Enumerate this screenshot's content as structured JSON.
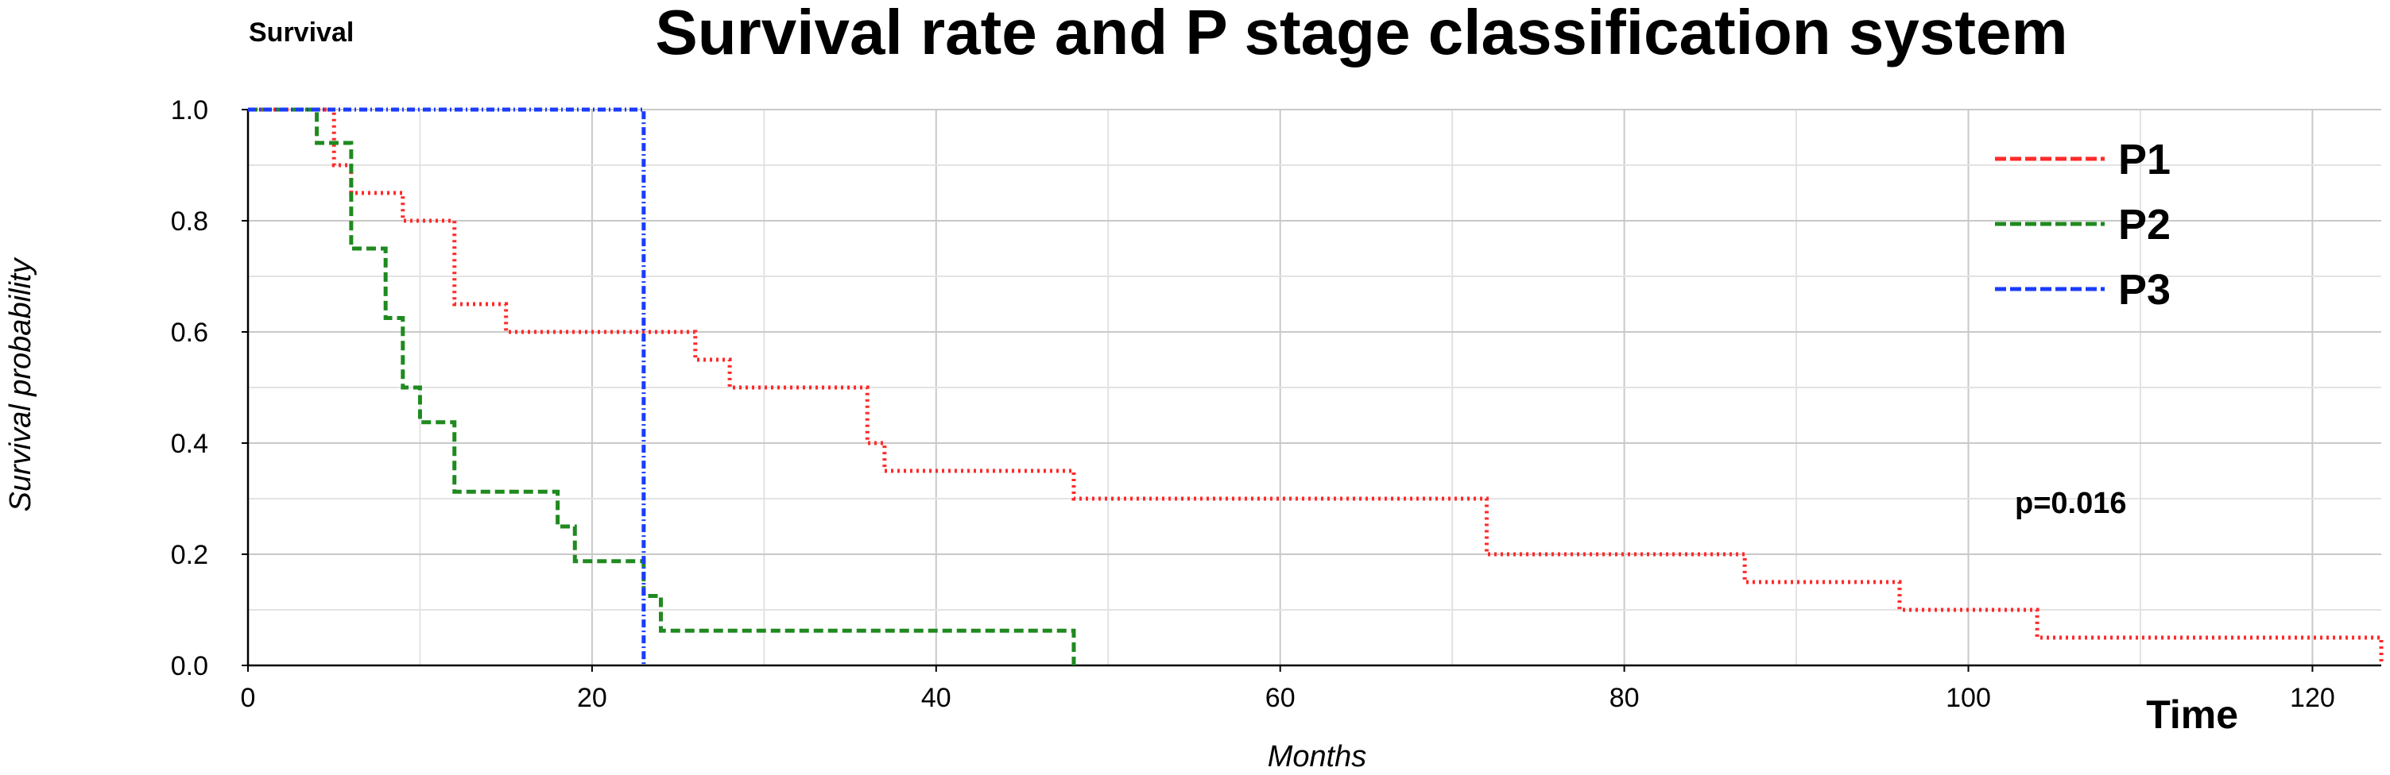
{
  "chart_data": {
    "type": "line",
    "title": "Survival rate and P stage classification system",
    "corner_label": "Survival",
    "xlabel": "Months",
    "ylabel": "Survival probability",
    "time_label": "Time",
    "annotation": "p=0.016",
    "xlim": [
      0,
      124
    ],
    "ylim": [
      0,
      1.0
    ],
    "x_ticks": [
      0,
      20,
      40,
      60,
      80,
      100,
      120
    ],
    "y_ticks": [
      0.0,
      0.2,
      0.4,
      0.6,
      0.8,
      1.0
    ],
    "x_tick_labels": [
      "0",
      "20",
      "40",
      "60",
      "80",
      "100",
      "120"
    ],
    "y_tick_labels": [
      "0.0",
      "0.2",
      "0.4",
      "0.6",
      "0.8",
      "1.0"
    ],
    "grid": true,
    "step": true,
    "legend_position": "top-right",
    "series": [
      {
        "name": "P1",
        "color": "#ff2a2a",
        "dash": "dotted",
        "x": [
          0,
          5,
          6,
          9,
          12,
          15,
          26,
          28,
          36,
          37,
          48,
          72,
          87,
          96,
          104,
          124
        ],
        "y": [
          1.0,
          0.9,
          0.85,
          0.8,
          0.65,
          0.6,
          0.55,
          0.5,
          0.4,
          0.35,
          0.3,
          0.2,
          0.15,
          0.1,
          0.05,
          0.0
        ]
      },
      {
        "name": "P2",
        "color": "#1f8a1f",
        "dash": "dashed",
        "x": [
          0,
          4,
          6,
          8,
          9,
          10,
          12,
          18,
          19,
          23,
          24,
          48
        ],
        "y": [
          1.0,
          0.94,
          0.75,
          0.625,
          0.5,
          0.4375,
          0.3125,
          0.25,
          0.1875,
          0.125,
          0.0625,
          0.0
        ]
      },
      {
        "name": "P3",
        "color": "#1a3cff",
        "dash": "dashdot",
        "x": [
          0,
          23
        ],
        "y": [
          1.0,
          0.0
        ]
      }
    ]
  }
}
